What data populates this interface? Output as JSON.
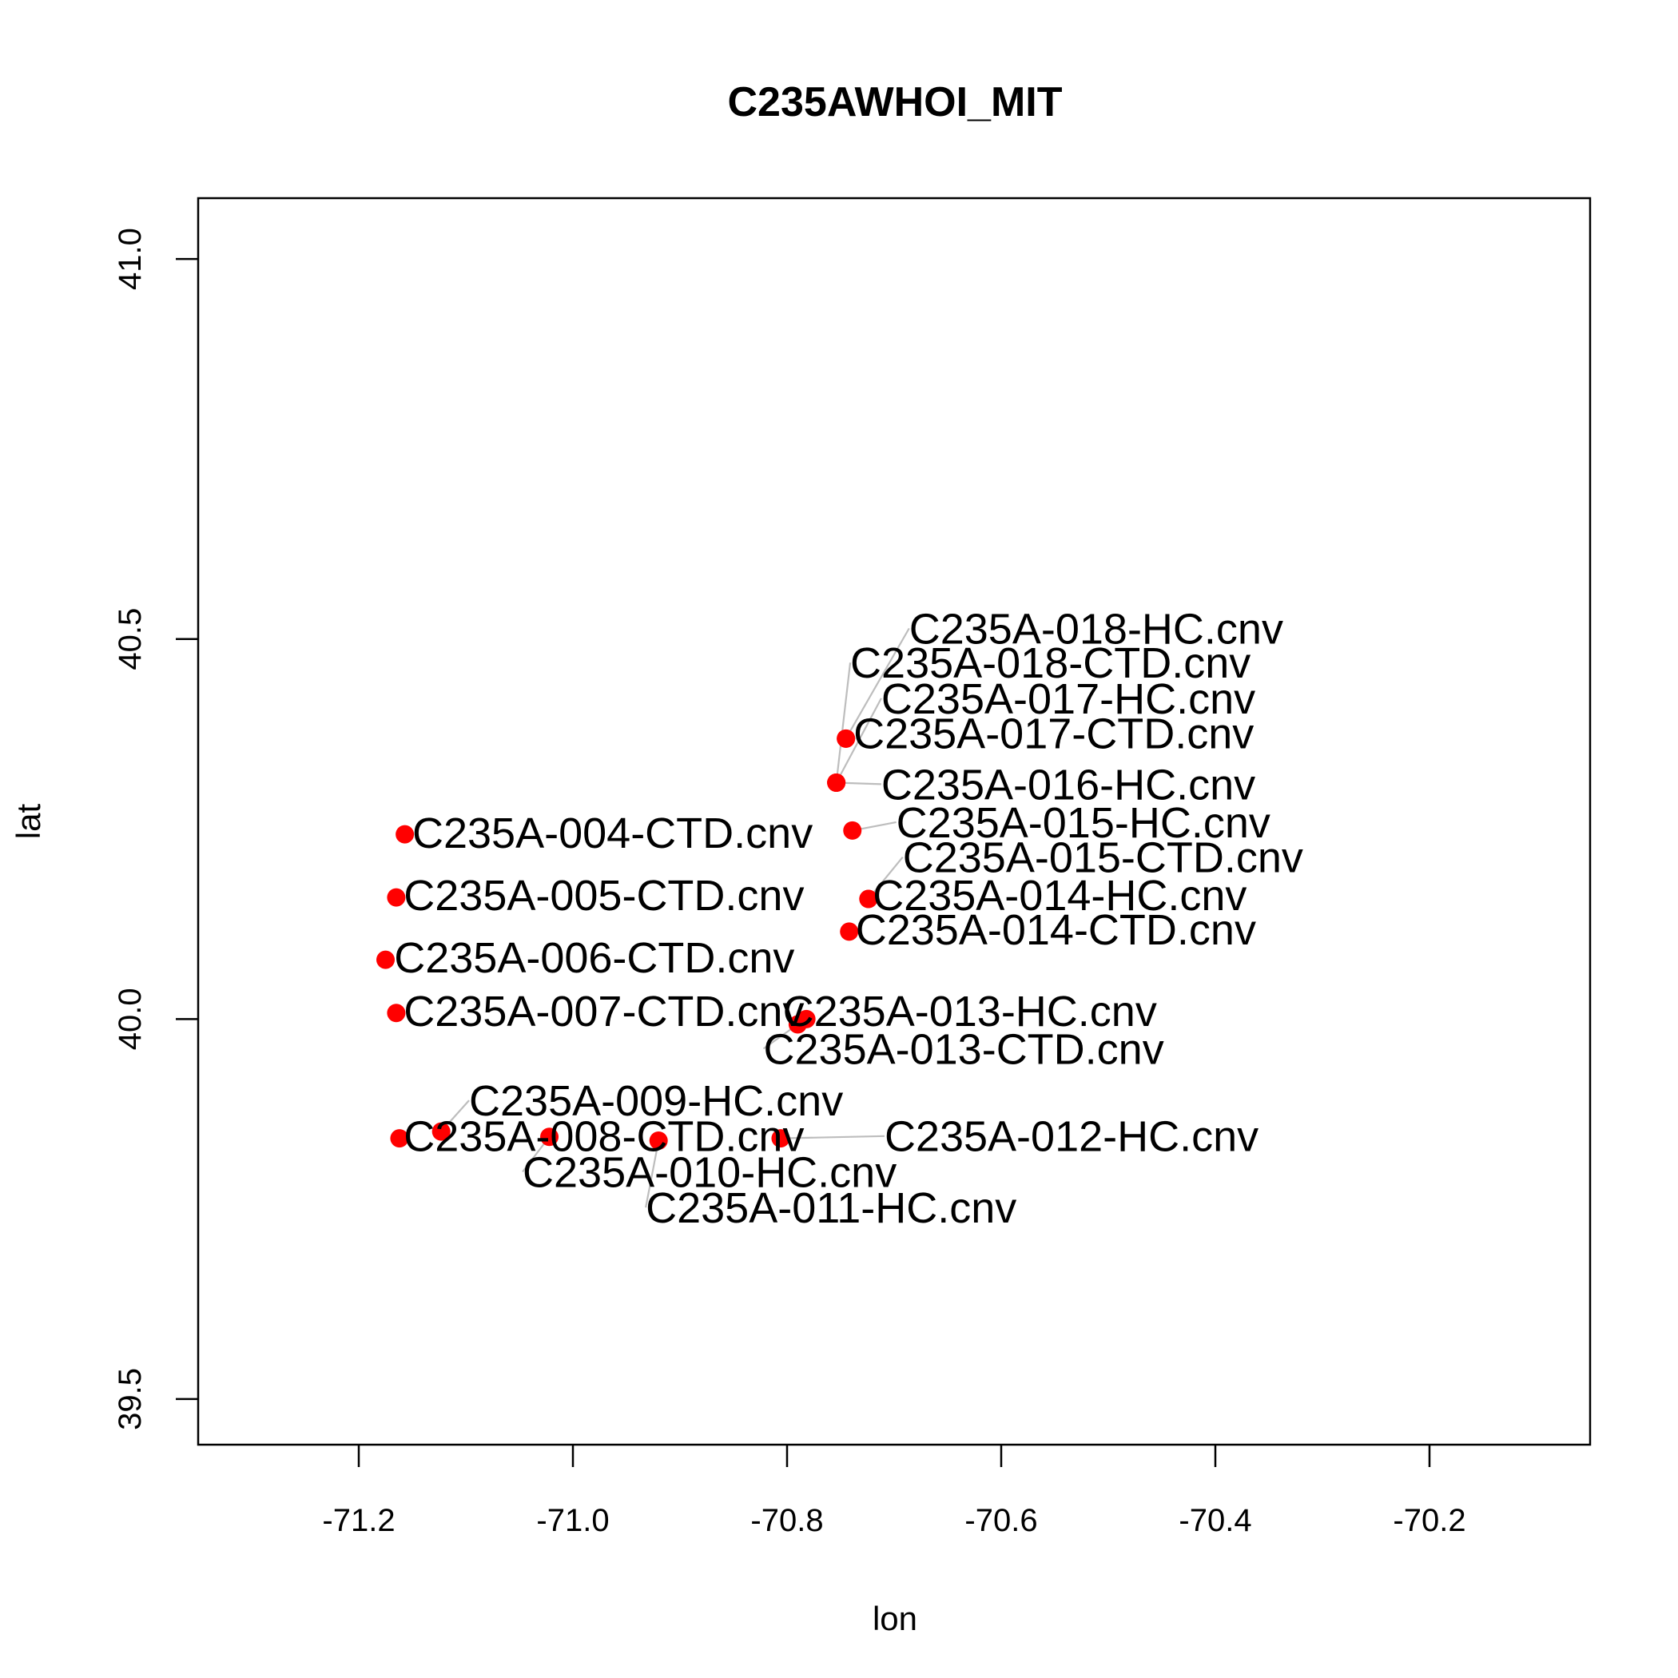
{
  "chart_data": {
    "type": "scatter",
    "title": "C235AWHOI_MIT",
    "xlabel": "lon",
    "ylabel": "lat",
    "xlim": [
      -71.35,
      -70.05
    ],
    "ylim": [
      39.44,
      41.08
    ],
    "xticks": [
      -71.2,
      -71.0,
      -70.8,
      -70.6,
      -70.4,
      -70.2
    ],
    "xtick_labels": [
      "-71.2",
      "-71.0",
      "-70.8",
      "-70.6",
      "-70.4",
      "-70.2"
    ],
    "yticks": [
      39.5,
      40.0,
      40.5,
      41.0
    ],
    "ytick_labels": [
      "39.5",
      "40.0",
      "40.5",
      "41.0"
    ],
    "point_color": "#ff0000",
    "leader_color": "#bdbdbd",
    "grid": false,
    "points": [
      {
        "name": "C235A-004-CTD.cnv",
        "x": -71.157,
        "y": 40.243,
        "label_x": -71.15,
        "label_y": 40.245
      },
      {
        "name": "C235A-005-CTD.cnv",
        "x": -71.165,
        "y": 40.16,
        "label_x": -71.158,
        "label_y": 40.163
      },
      {
        "name": "C235A-006-CTD.cnv",
        "x": -71.175,
        "y": 40.078,
        "label_x": -71.167,
        "label_y": 40.081
      },
      {
        "name": "C235A-007-CTD.cnv",
        "x": -71.165,
        "y": 40.008,
        "label_x": -71.158,
        "label_y": 40.011
      },
      {
        "name": "C235A-008-CTD.cnv",
        "x": -71.162,
        "y": 39.843,
        "label_x": -71.158,
        "label_y": 39.846
      },
      {
        "name": "C235A-009-HC.cnv",
        "x": -71.123,
        "y": 39.852,
        "label_x": -71.097,
        "label_y": 39.893
      },
      {
        "name": "C235A-010-HC.cnv",
        "x": -71.022,
        "y": 39.845,
        "label_x": -71.047,
        "label_y": 39.799
      },
      {
        "name": "C235A-011-HC.cnv",
        "x": -70.92,
        "y": 39.84,
        "label_x": -70.932,
        "label_y": 39.752
      },
      {
        "name": "C235A-012-HC.cnv",
        "x": -70.806,
        "y": 39.843,
        "label_x": -70.709,
        "label_y": 39.846
      },
      {
        "name": "C235A-013-HC.cnv",
        "x": -70.782,
        "y": 40.0,
        "label_x": -70.804,
        "label_y": 40.011
      },
      {
        "name": "C235A-013-CTD.cnv",
        "x": -70.79,
        "y": 39.993,
        "label_x": -70.822,
        "label_y": 39.961
      },
      {
        "name": "C235A-014-CTD.cnv",
        "x": -70.742,
        "y": 40.115,
        "label_x": -70.736,
        "label_y": 40.118
      },
      {
        "name": "C235A-014-HC.cnv",
        "x": -70.724,
        "y": 40.158,
        "label_x": -70.72,
        "label_y": 40.163
      },
      {
        "name": "C235A-015-CTD.cnv",
        "x": -70.724,
        "y": 40.158,
        "label_x": -70.692,
        "label_y": 40.213
      },
      {
        "name": "C235A-015-HC.cnv",
        "x": -70.739,
        "y": 40.248,
        "label_x": -70.698,
        "label_y": 40.259
      },
      {
        "name": "C235A-016-HC.cnv",
        "x": -70.754,
        "y": 40.311,
        "label_x": -70.712,
        "label_y": 40.309
      },
      {
        "name": "C235A-017-CTD.cnv",
        "x": -70.745,
        "y": 40.369,
        "label_x": -70.738,
        "label_y": 40.376
      },
      {
        "name": "C235A-017-HC.cnv",
        "x": -70.754,
        "y": 40.311,
        "label_x": -70.712,
        "label_y": 40.422
      },
      {
        "name": "C235A-018-CTD.cnv",
        "x": -70.754,
        "y": 40.311,
        "label_x": -70.741,
        "label_y": 40.469
      },
      {
        "name": "C235A-018-HC.cnv",
        "x": -70.745,
        "y": 40.369,
        "label_x": -70.686,
        "label_y": 40.514
      }
    ]
  }
}
